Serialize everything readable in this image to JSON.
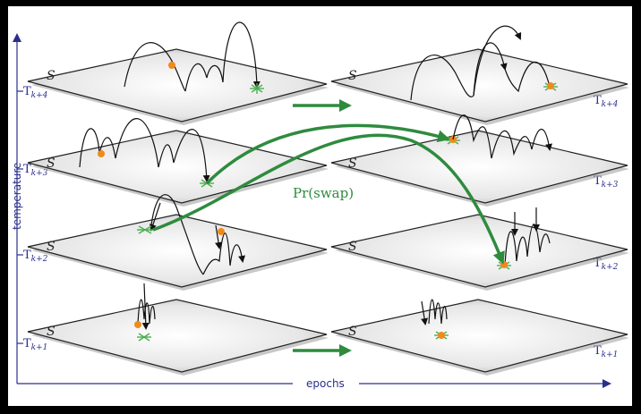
{
  "axes": {
    "y_label": "temperature",
    "x_label": "epochs"
  },
  "plane_symbol": "S",
  "temperature_levels": [
    {
      "base": "T",
      "sub": "k+4"
    },
    {
      "base": "T",
      "sub": "k+3"
    },
    {
      "base": "T",
      "sub": "k+2"
    },
    {
      "base": "T",
      "sub": "k+1"
    }
  ],
  "swap_label": "Pr(swap)",
  "colors": {
    "swap_arrow": "#2e8b3e",
    "axis": "#2a2f8c",
    "particle": "#f08a1c",
    "minimum": "#4caf50"
  }
}
